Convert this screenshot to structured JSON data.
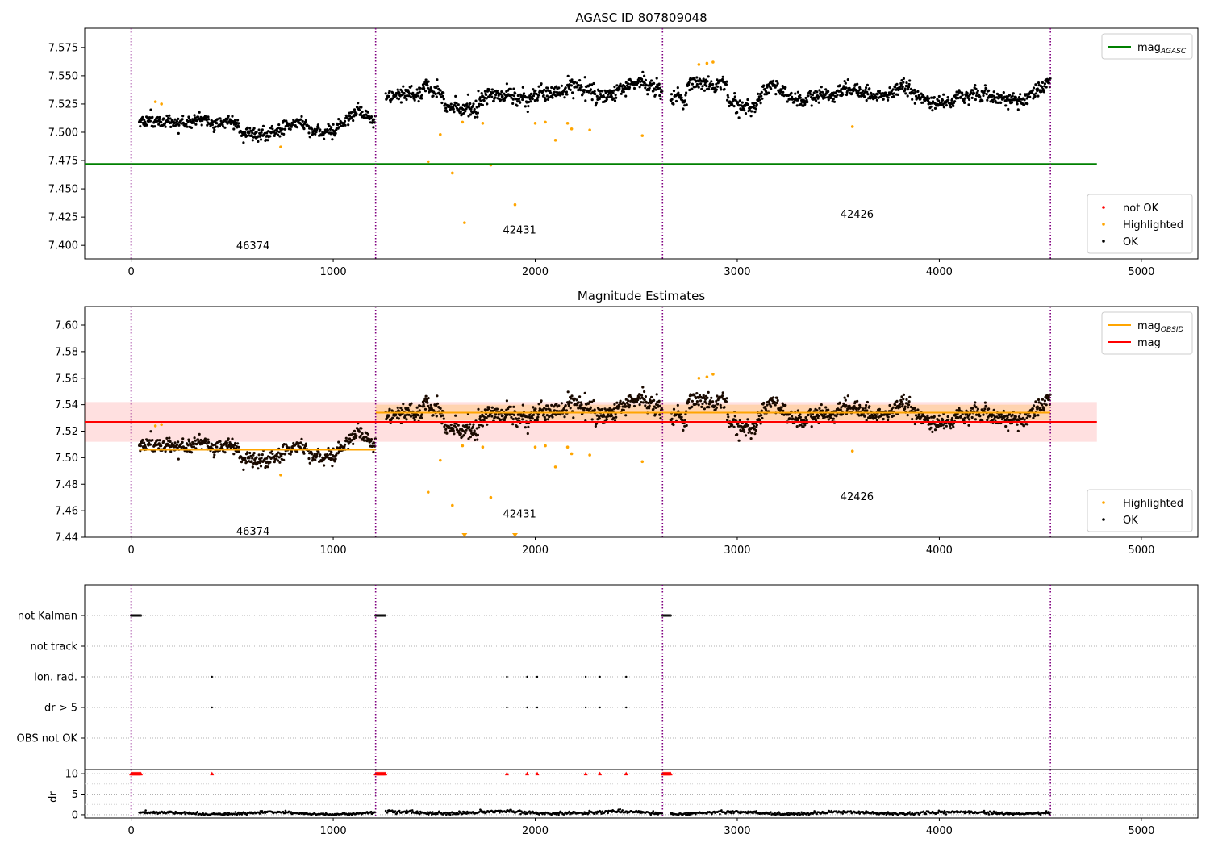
{
  "chart_data": [
    {
      "type": "scatter",
      "title": "AGASC ID 807809048",
      "xlim": [
        -230,
        5280
      ],
      "ylim": [
        7.388,
        7.592
      ],
      "x_ticks": [
        0,
        1000,
        2000,
        3000,
        4000,
        5000
      ],
      "y_ticks": [
        7.4,
        7.425,
        7.45,
        7.475,
        7.5,
        7.525,
        7.55,
        7.575
      ],
      "y_tick_decimals": 3,
      "obsid_boundaries": [
        0,
        1210,
        2630,
        4550
      ],
      "obsid_labels": [
        {
          "text": "46374",
          "x": 600,
          "y": 7.4
        },
        {
          "text": "42431",
          "x": 1920,
          "y": 7.414
        },
        {
          "text": "42426",
          "x": 3590,
          "y": 7.428
        }
      ],
      "reference_lines": [
        {
          "name": "mag",
          "subscript": "AGASC",
          "y": 7.472,
          "x_range": [
            -230,
            4780
          ],
          "color": "#008000"
        }
      ],
      "segments": [
        {
          "x_start": 40,
          "x_end": 1210,
          "base": 7.504,
          "noise": 0.0045,
          "trend": 0.003
        },
        {
          "x_start": 1260,
          "x_end": 2630,
          "base": 7.533,
          "noise": 0.006,
          "trend": 0.0
        },
        {
          "x_start": 2670,
          "x_end": 4550,
          "base": 7.533,
          "noise": 0.0055,
          "trend": 0.0
        }
      ],
      "highlighted_points": [
        [
          120,
          7.527
        ],
        [
          150,
          7.525
        ],
        [
          740,
          7.487
        ],
        [
          1470,
          7.474
        ],
        [
          1530,
          7.498
        ],
        [
          1590,
          7.464
        ],
        [
          1640,
          7.509
        ],
        [
          1650,
          7.42
        ],
        [
          1740,
          7.508
        ],
        [
          1780,
          7.471
        ],
        [
          1900,
          7.436
        ],
        [
          2000,
          7.508
        ],
        [
          2050,
          7.509
        ],
        [
          2100,
          7.493
        ],
        [
          2160,
          7.508
        ],
        [
          2180,
          7.503
        ],
        [
          2270,
          7.502
        ],
        [
          2530,
          7.497
        ],
        [
          2810,
          7.56
        ],
        [
          2850,
          7.561
        ],
        [
          2880,
          7.562
        ],
        [
          3570,
          7.505
        ]
      ],
      "legends": [
        {
          "position": "upper-right",
          "entries": [
            {
              "kind": "line",
              "label": "mag",
              "subscript": "AGASC",
              "color": "#008000"
            }
          ]
        },
        {
          "position": "lower-right",
          "entries": [
            {
              "kind": "dot",
              "label": "not OK",
              "color": "#ff0000"
            },
            {
              "kind": "dot",
              "label": "Highlighted",
              "color": "#ffa500"
            },
            {
              "kind": "dot",
              "label": "OK",
              "color": "#000000"
            }
          ]
        }
      ]
    },
    {
      "type": "scatter",
      "title": "Magnitude Estimates",
      "xlim": [
        -230,
        5280
      ],
      "ylim": [
        7.44,
        7.614
      ],
      "x_ticks": [
        0,
        1000,
        2000,
        3000,
        4000,
        5000
      ],
      "y_ticks": [
        7.44,
        7.46,
        7.48,
        7.5,
        7.52,
        7.54,
        7.56,
        7.58,
        7.6
      ],
      "y_tick_decimals": 2,
      "obsid_boundaries": [
        0,
        1210,
        2630,
        4550
      ],
      "obsid_labels": [
        {
          "text": "46374",
          "x": 600,
          "y": 7.445
        },
        {
          "text": "42431",
          "x": 1920,
          "y": 7.458
        },
        {
          "text": "42426",
          "x": 3590,
          "y": 7.471
        }
      ],
      "bands": [
        {
          "y_range": [
            7.512,
            7.542
          ],
          "x_range": [
            -230,
            4780
          ],
          "color": "#ff0000",
          "opacity": 0.12
        },
        {
          "y_range": [
            7.528,
            7.54
          ],
          "x_range": [
            1210,
            4550
          ],
          "color": "#ffa500",
          "opacity": 0.22
        }
      ],
      "reference_lines": [
        {
          "name": "mag",
          "y": 7.527,
          "x_range": [
            -230,
            4780
          ],
          "color": "#ff0000"
        },
        {
          "name": "mag",
          "subscript": "OBSID",
          "y": 7.506,
          "x_range": [
            40,
            1210
          ],
          "color": "#ffa500"
        },
        {
          "name": "mag",
          "subscript": "OBSID",
          "y": 7.534,
          "x_range": [
            1210,
            4550
          ],
          "color": "#ffa500"
        }
      ],
      "segments": [
        {
          "x_start": 40,
          "x_end": 1210,
          "base": 7.504,
          "noise": 0.0045,
          "trend": 0.003
        },
        {
          "x_start": 1260,
          "x_end": 2630,
          "base": 7.533,
          "noise": 0.006,
          "trend": 0.0
        },
        {
          "x_start": 2670,
          "x_end": 4550,
          "base": 7.533,
          "noise": 0.0055,
          "trend": 0.0
        }
      ],
      "highlighted_points": [
        [
          120,
          7.524
        ],
        [
          150,
          7.525
        ],
        [
          740,
          7.487
        ],
        [
          1470,
          7.474
        ],
        [
          1530,
          7.498
        ],
        [
          1590,
          7.464
        ],
        [
          1640,
          7.509
        ],
        [
          1740,
          7.508
        ],
        [
          1780,
          7.47
        ],
        [
          2000,
          7.508
        ],
        [
          2050,
          7.509
        ],
        [
          2100,
          7.493
        ],
        [
          2160,
          7.508
        ],
        [
          2180,
          7.503
        ],
        [
          2270,
          7.502
        ],
        [
          2530,
          7.497
        ],
        [
          2810,
          7.56
        ],
        [
          2850,
          7.561
        ],
        [
          2880,
          7.563
        ],
        [
          3570,
          7.505
        ]
      ],
      "out_of_range_markers": [
        [
          1650,
          7.44
        ],
        [
          1900,
          7.44
        ]
      ],
      "legends": [
        {
          "position": "upper-right",
          "entries": [
            {
              "kind": "line",
              "label": "mag",
              "subscript": "OBSID",
              "color": "#ffa500"
            },
            {
              "kind": "line",
              "label": "mag",
              "color": "#ff0000"
            }
          ]
        },
        {
          "position": "lower-right",
          "entries": [
            {
              "kind": "dot",
              "label": "Highlighted",
              "color": "#ffa500"
            },
            {
              "kind": "dot",
              "label": "OK",
              "color": "#000000"
            }
          ]
        }
      ]
    },
    {
      "type": "scatter",
      "title": "",
      "xlim": [
        -230,
        5280
      ],
      "categories": [
        "not Kalman",
        "not track",
        "Ion. rad.",
        "dr > 5",
        "OBS not OK"
      ],
      "obsid_boundaries": [
        0,
        1210,
        2630,
        4550
      ],
      "flag_points": {
        "not Kalman": {
          "ranges": [
            [
              0,
              50
            ],
            [
              1210,
              1260
            ],
            [
              2630,
              2670
            ]
          ]
        },
        "not track": {
          "ranges": []
        },
        "Ion. rad.": {
          "points": [
            400,
            1860,
            1960,
            2010,
            2250,
            2320,
            2450
          ]
        },
        "dr > 5": {
          "points": [
            400,
            1860,
            1960,
            2010,
            2250,
            2320,
            2450
          ]
        },
        "OBS not OK": {
          "points": []
        }
      }
    },
    {
      "type": "scatter",
      "title": "",
      "xlim": [
        -230,
        5280
      ],
      "ylim": [
        -0.8,
        11.0
      ],
      "ylabel": "dr",
      "y_ticks": [
        0,
        5,
        10
      ],
      "obsid_boundaries": [
        0,
        1210,
        2630,
        4550
      ],
      "clipped_value": 10,
      "clipped_points": {
        "ranges": [
          [
            0,
            50
          ],
          [
            1210,
            1260
          ],
          [
            2630,
            2670
          ]
        ],
        "points": [
          400,
          1860,
          1960,
          2010,
          2250,
          2320,
          2450
        ]
      },
      "segments": [
        {
          "x_start": 40,
          "x_end": 1210,
          "base": 0.35,
          "noise": 0.15
        },
        {
          "x_start": 1260,
          "x_end": 2630,
          "base": 0.55,
          "noise": 0.2
        },
        {
          "x_start": 2670,
          "x_end": 4550,
          "base": 0.45,
          "noise": 0.18
        }
      ],
      "x_ticks": [
        0,
        1000,
        2000,
        3000,
        4000,
        5000
      ]
    }
  ]
}
